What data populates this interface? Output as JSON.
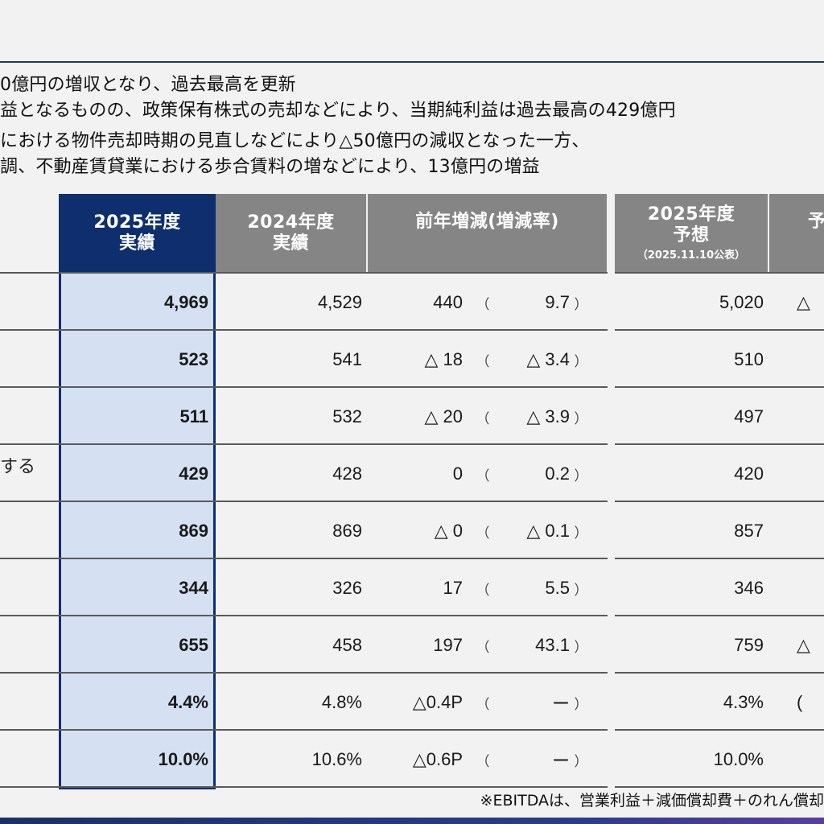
{
  "bullets": [
    "0億円の増収となり、過去最高を更新",
    "益となるものの、政策保有株式の売却などにより、当期純利益は過去最高の429億円",
    "における物件売却時期の見直しなどにより△50億円の減収となった一方、",
    "調、不動産賃貸業における歩合賃料の増などにより、13億円の増益"
  ],
  "headers": {
    "actual_2025": [
      "2025年度",
      "実績"
    ],
    "actual_2024": [
      "2024年度",
      "実績"
    ],
    "yoy": "前年増減(増減率)",
    "forecast_2025": [
      "2025年度",
      "予想"
    ],
    "forecast_note": "（2025.11.10公表）",
    "partial_forecast": "予"
  },
  "left_label_fragment": "する",
  "paren_open": "（",
  "paren_close": "）",
  "rows": [
    {
      "actual": "4,969",
      "prev": "4,529",
      "diff": "440",
      "rate": "9.7",
      "forecast": "5,020",
      "partial": "△"
    },
    {
      "actual": "523",
      "prev": "541",
      "diff": "△ 18",
      "rate": "△ 3.4",
      "forecast": "510",
      "partial": ""
    },
    {
      "actual": "511",
      "prev": "532",
      "diff": "△ 20",
      "rate": "△ 3.9",
      "forecast": "497",
      "partial": ""
    },
    {
      "actual": "429",
      "prev": "428",
      "diff": "0",
      "rate": "0.2",
      "forecast": "420",
      "partial": ""
    },
    {
      "actual": "869",
      "prev": "869",
      "diff": "△ 0",
      "rate": "△ 0.1",
      "forecast": "857",
      "partial": ""
    },
    {
      "actual": "344",
      "prev": "326",
      "diff": "17",
      "rate": "5.5",
      "forecast": "346",
      "partial": ""
    },
    {
      "actual": "655",
      "prev": "458",
      "diff": "197",
      "rate": "43.1",
      "forecast": "759",
      "partial": "△"
    },
    {
      "actual": "4.4%",
      "prev": "4.8%",
      "diff": "△0.4P",
      "rate": "ー",
      "forecast": "4.3%",
      "partial": "("
    },
    {
      "actual": "10.0%",
      "prev": "10.6%",
      "diff": "△0.6P",
      "rate": "ー",
      "forecast": "10.0%",
      "partial": ""
    }
  ],
  "footnote": "※EBITDAは、営業利益＋減価償却費＋のれん償却"
}
